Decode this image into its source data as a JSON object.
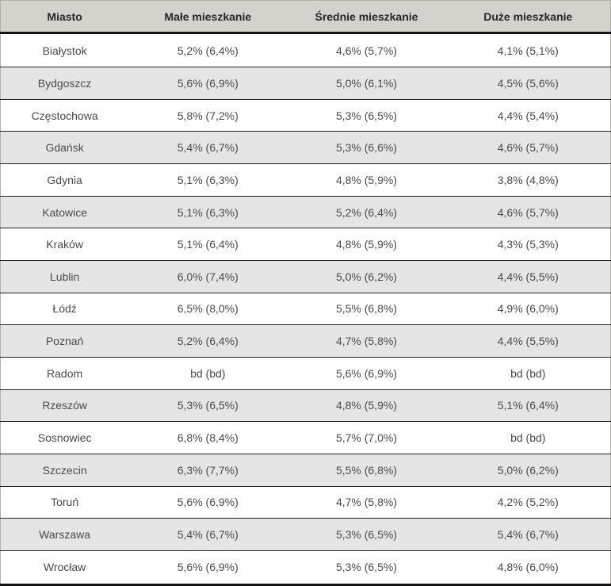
{
  "chart_data": {
    "type": "table",
    "columns": [
      "Miasto",
      "Małe mieszkanie",
      "Średnie mieszkanie",
      "Duże mieszkanie"
    ],
    "rows": [
      [
        "Białystok",
        "5,2% (6,4%)",
        "4,6% (5,7%)",
        "4,1% (5,1%)"
      ],
      [
        "Bydgoszcz",
        "5,6% (6,9%)",
        "5,0% (6,1%)",
        "4,5% (5,6%)"
      ],
      [
        "Częstochowa",
        "5,8% (7,2%)",
        "5,3% (6,5%)",
        "4,4% (5,4%)"
      ],
      [
        "Gdańsk",
        "5,4% (6,7%)",
        "5,3% (6,6%)",
        "4,6% (5,7%)"
      ],
      [
        "Gdynia",
        "5,1% (6,3%)",
        "4,8% (5,9%)",
        "3,8% (4,8%)"
      ],
      [
        "Katowice",
        "5,1% (6,3%)",
        "5,2% (6,4%)",
        "4,6% (5,7%)"
      ],
      [
        "Kraków",
        "5,1% (6,4%)",
        "4,8% (5,9%)",
        "4,3% (5,3%)"
      ],
      [
        "Lublin",
        "6,0% (7,4%)",
        "5,0% (6,2%)",
        "4,4% (5,5%)"
      ],
      [
        "Łódź",
        "6,5% (8,0%)",
        "5,5% (6,8%)",
        "4,9% (6,0%)"
      ],
      [
        "Poznań",
        "5,2% (6,4%)",
        "4,7% (5,8%)",
        "4,4% (5,5%)"
      ],
      [
        "Radom",
        "bd (bd)",
        "5,6% (6,9%)",
        "bd (bd)"
      ],
      [
        "Rzeszów",
        "5,3% (6,5%)",
        "4,8% (5,9%)",
        "5,1% (6,4%)"
      ],
      [
        "Sosnowiec",
        "6,8% (8,4%)",
        "5,7% (7,0%)",
        "bd (bd)"
      ],
      [
        "Szczecin",
        "6,3% (7,7%)",
        "5,5% (6,8%)",
        "5,0% (6,2%)"
      ],
      [
        "Toruń",
        "5,6% (6,9%)",
        "4,7% (5,8%)",
        "4,2% (5,2%)"
      ],
      [
        "Warszawa",
        "5,4% (6,7%)",
        "5,3% (6,5%)",
        "5,4% (6,7%)"
      ],
      [
        "Wrocław",
        "5,6% (6,9%)",
        "5,3% (6,5%)",
        "4,8% (6,0%)"
      ]
    ],
    "layout": {
      "grid": "horizontal-rules-only",
      "row_striping": "white-gray-alternating",
      "text_align": "center"
    }
  },
  "colors": {
    "header_bg": "#d5d1cd",
    "row_alt_bg": "#e6e5e5",
    "row_bg": "#ffffff",
    "rule_dark": "#141414",
    "row_separator": "#222222",
    "header_text": "#262626",
    "cell_text": "#4a4a4a"
  }
}
